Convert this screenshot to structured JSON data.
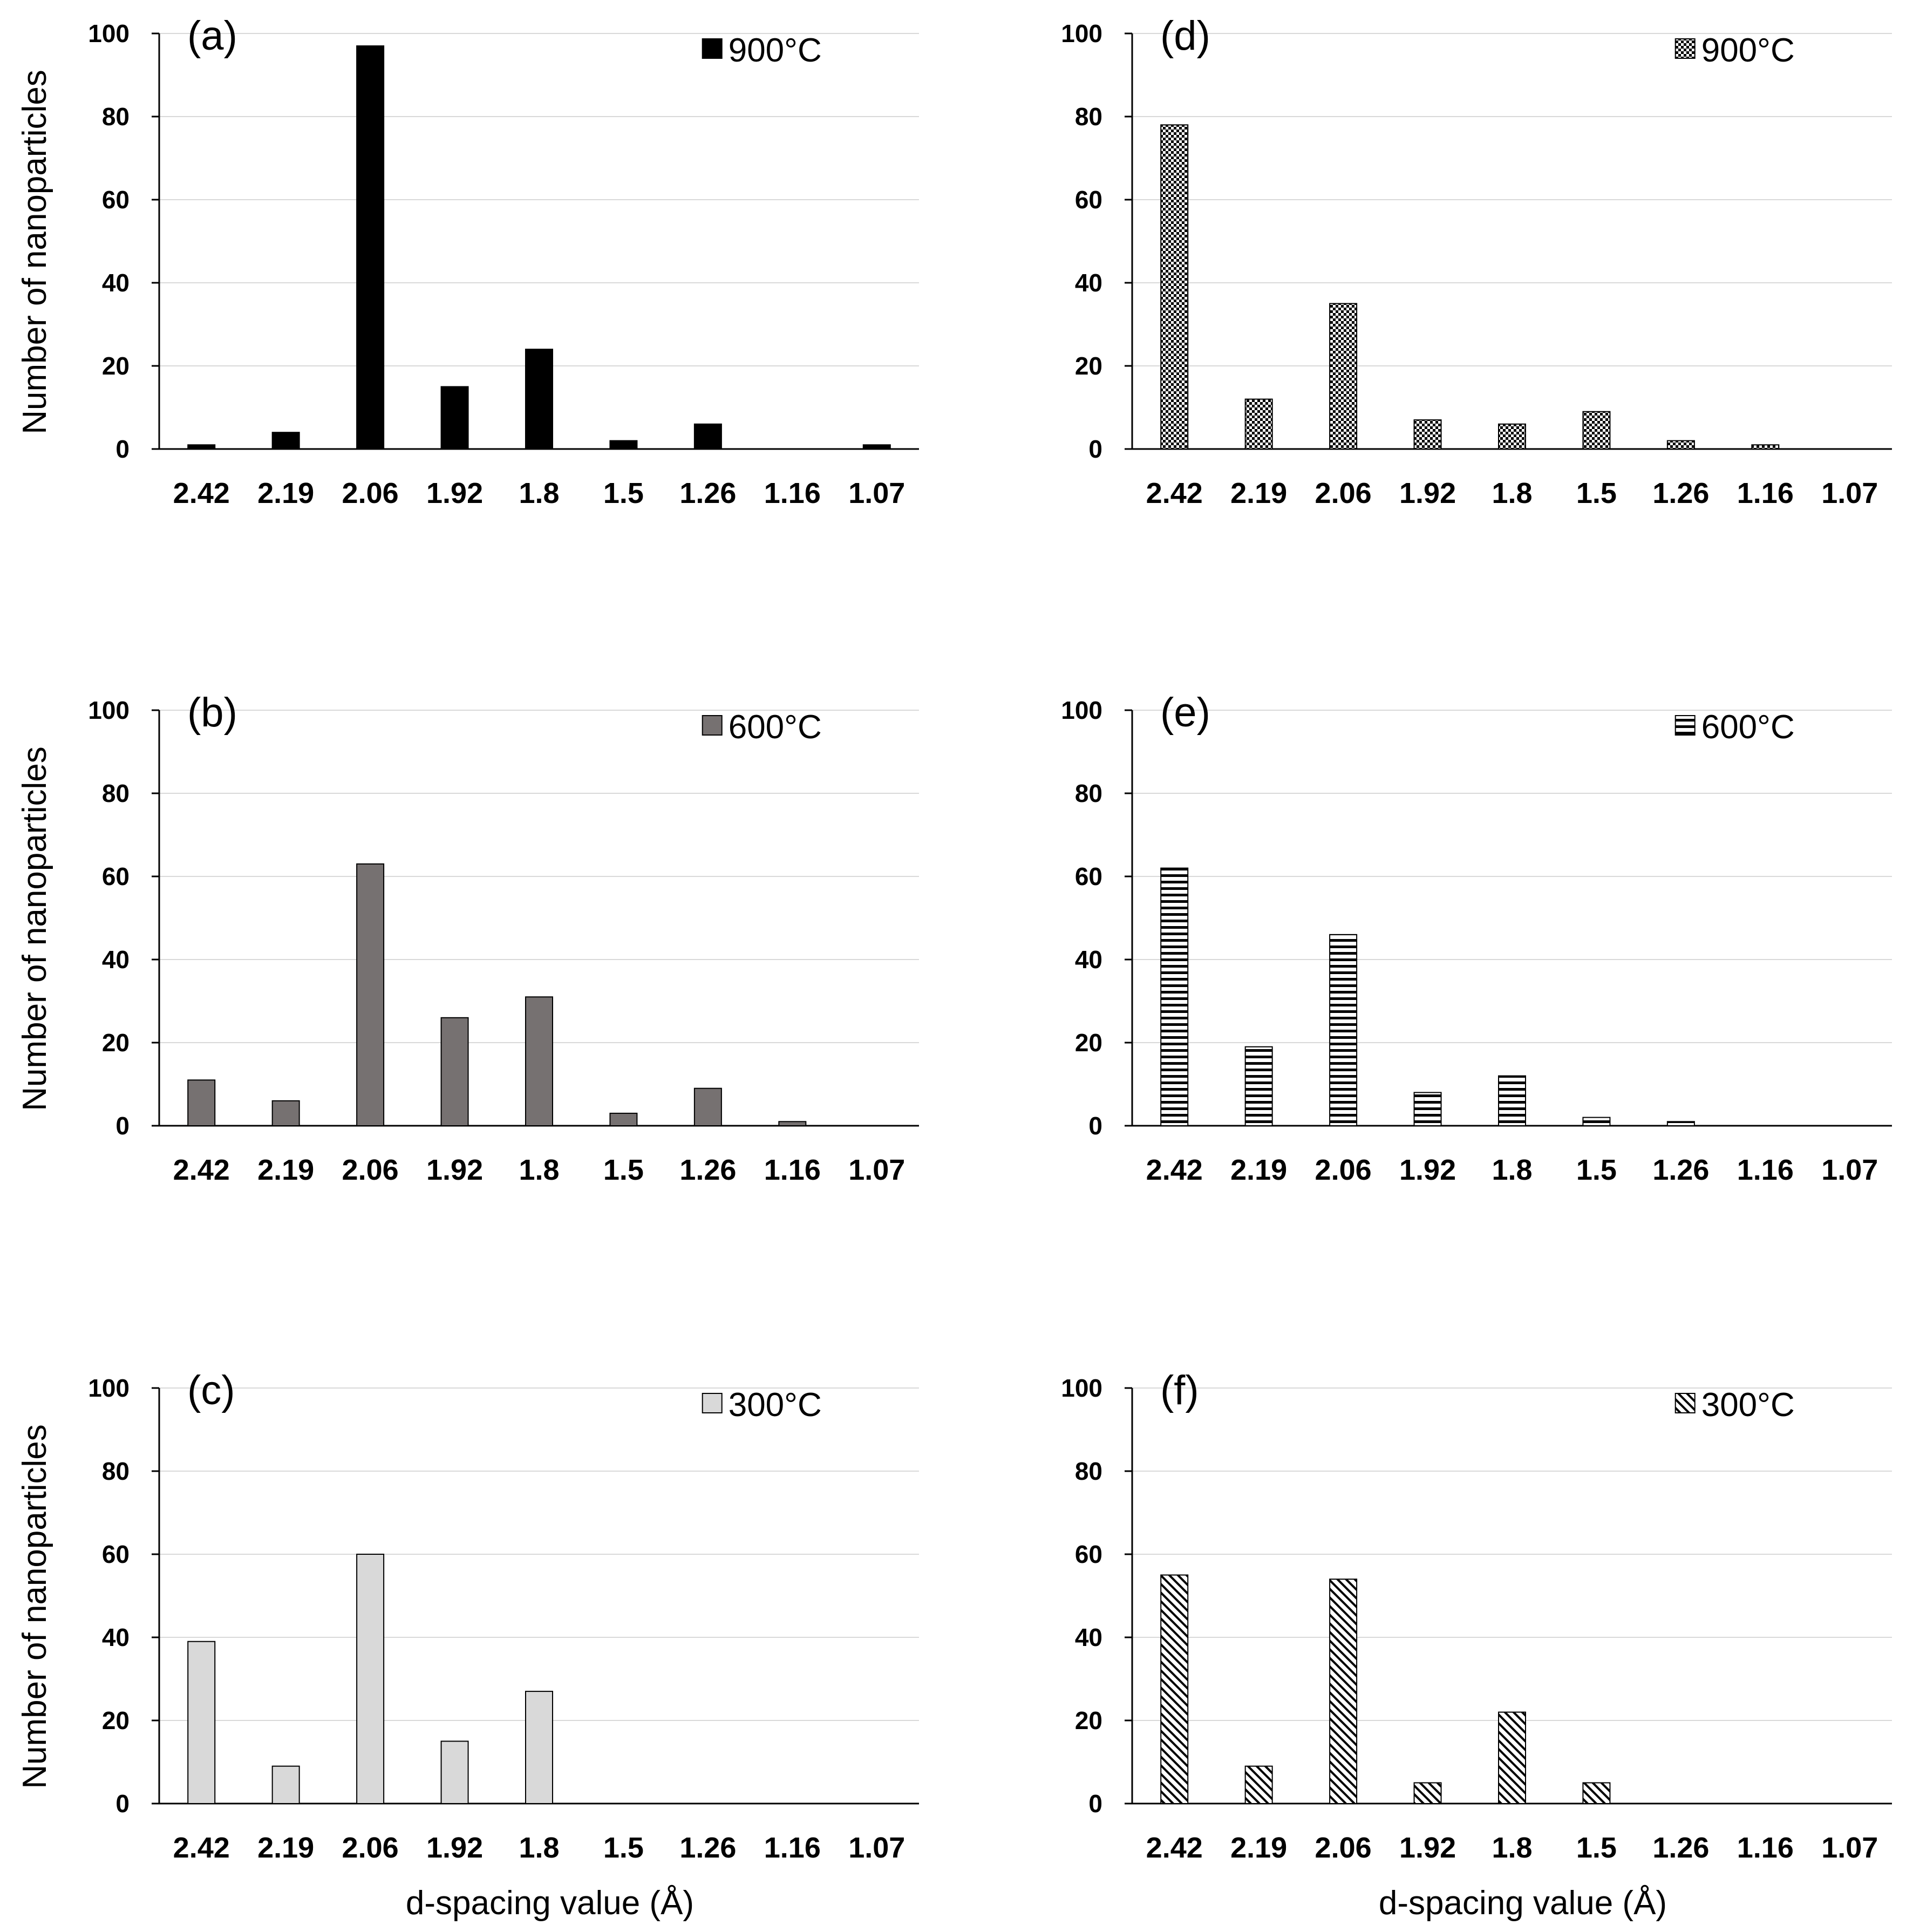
{
  "chart_data": [
    {
      "id": "a",
      "type": "bar",
      "panel_label": "(a)",
      "legend": "900°C",
      "fill": "#000000",
      "pattern": "solid",
      "categories": [
        "2.42",
        "2.19",
        "2.06",
        "1.92",
        "1.8",
        "1.5",
        "1.26",
        "1.16",
        "1.07"
      ],
      "values": [
        1,
        4,
        97,
        15,
        24,
        2,
        6,
        0,
        1
      ],
      "ylim": [
        0,
        100
      ],
      "yticks": [
        0,
        20,
        40,
        60,
        80,
        100
      ],
      "ylabel": "Number of nanoparticles",
      "xlabel": "",
      "grid": true,
      "legend_position": "top-right"
    },
    {
      "id": "b",
      "type": "bar",
      "panel_label": "(b)",
      "legend": "600°C",
      "fill": "#767171",
      "pattern": "solid",
      "categories": [
        "2.42",
        "2.19",
        "2.06",
        "1.92",
        "1.8",
        "1.5",
        "1.26",
        "1.16",
        "1.07"
      ],
      "values": [
        11,
        6,
        63,
        26,
        31,
        3,
        9,
        1,
        0
      ],
      "ylim": [
        0,
        100
      ],
      "yticks": [
        0,
        20,
        40,
        60,
        80,
        100
      ],
      "ylabel": "Number of nanoparticles",
      "xlabel": "",
      "grid": true,
      "legend_position": "top-right"
    },
    {
      "id": "c",
      "type": "bar",
      "panel_label": "(c)",
      "legend": "300°C",
      "fill": "#d9d9d9",
      "pattern": "solid",
      "categories": [
        "2.42",
        "2.19",
        "2.06",
        "1.92",
        "1.8",
        "1.5",
        "1.26",
        "1.16",
        "1.07"
      ],
      "values": [
        39,
        9,
        60,
        15,
        27,
        0,
        0,
        0,
        0
      ],
      "ylim": [
        0,
        100
      ],
      "yticks": [
        0,
        20,
        40,
        60,
        80,
        100
      ],
      "ylabel": "Number of nanoparticles",
      "xlabel": "d-spacing value (Å)",
      "grid": true,
      "legend_position": "top-right"
    },
    {
      "id": "d",
      "type": "bar",
      "panel_label": "(d)",
      "legend": "900°C",
      "fill": "#000000",
      "pattern": "checker",
      "categories": [
        "2.42",
        "2.19",
        "2.06",
        "1.92",
        "1.8",
        "1.5",
        "1.26",
        "1.16",
        "1.07"
      ],
      "values": [
        78,
        12,
        35,
        7,
        6,
        9,
        2,
        1,
        0
      ],
      "ylim": [
        0,
        100
      ],
      "yticks": [
        0,
        20,
        40,
        60,
        80,
        100
      ],
      "ylabel": "",
      "xlabel": "",
      "grid": true,
      "legend_position": "top-right"
    },
    {
      "id": "e",
      "type": "bar",
      "panel_label": "(e)",
      "legend": "600°C",
      "fill": "#000000",
      "pattern": "hstripes",
      "categories": [
        "2.42",
        "2.19",
        "2.06",
        "1.92",
        "1.8",
        "1.5",
        "1.26",
        "1.16",
        "1.07"
      ],
      "values": [
        62,
        19,
        46,
        8,
        12,
        2,
        1,
        0,
        0
      ],
      "ylim": [
        0,
        100
      ],
      "yticks": [
        0,
        20,
        40,
        60,
        80,
        100
      ],
      "ylabel": "",
      "xlabel": "",
      "grid": true,
      "legend_position": "top-right"
    },
    {
      "id": "f",
      "type": "bar",
      "panel_label": "(f)",
      "legend": "300°C",
      "fill": "#000000",
      "pattern": "diagonal",
      "categories": [
        "2.42",
        "2.19",
        "2.06",
        "1.92",
        "1.8",
        "1.5",
        "1.26",
        "1.16",
        "1.07"
      ],
      "values": [
        55,
        9,
        54,
        5,
        22,
        5,
        0,
        0,
        0
      ],
      "ylim": [
        0,
        100
      ],
      "yticks": [
        0,
        20,
        40,
        60,
        80,
        100
      ],
      "ylabel": "",
      "xlabel": "d-spacing value (Å)",
      "grid": true,
      "legend_position": "top-right"
    }
  ]
}
